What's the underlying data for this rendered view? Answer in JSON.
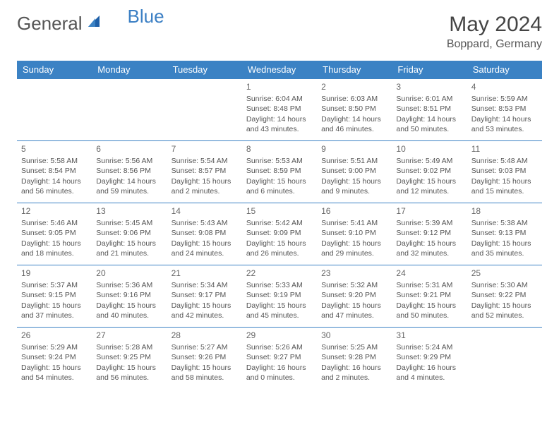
{
  "logo": {
    "general": "General",
    "blue": "Blue"
  },
  "title": "May 2024",
  "location": "Boppard, Germany",
  "colors": {
    "header_bg": "#3b82c4",
    "header_text": "#ffffff",
    "border": "#3b82c4",
    "text": "#555555",
    "logo_gray": "#555555",
    "logo_blue": "#3b7fc4"
  },
  "dayHeaders": [
    "Sunday",
    "Monday",
    "Tuesday",
    "Wednesday",
    "Thursday",
    "Friday",
    "Saturday"
  ],
  "weeks": [
    [
      null,
      null,
      null,
      {
        "n": "1",
        "sr": "6:04 AM",
        "ss": "8:48 PM",
        "dl": "14 hours and 43 minutes."
      },
      {
        "n": "2",
        "sr": "6:03 AM",
        "ss": "8:50 PM",
        "dl": "14 hours and 46 minutes."
      },
      {
        "n": "3",
        "sr": "6:01 AM",
        "ss": "8:51 PM",
        "dl": "14 hours and 50 minutes."
      },
      {
        "n": "4",
        "sr": "5:59 AM",
        "ss": "8:53 PM",
        "dl": "14 hours and 53 minutes."
      }
    ],
    [
      {
        "n": "5",
        "sr": "5:58 AM",
        "ss": "8:54 PM",
        "dl": "14 hours and 56 minutes."
      },
      {
        "n": "6",
        "sr": "5:56 AM",
        "ss": "8:56 PM",
        "dl": "14 hours and 59 minutes."
      },
      {
        "n": "7",
        "sr": "5:54 AM",
        "ss": "8:57 PM",
        "dl": "15 hours and 2 minutes."
      },
      {
        "n": "8",
        "sr": "5:53 AM",
        "ss": "8:59 PM",
        "dl": "15 hours and 6 minutes."
      },
      {
        "n": "9",
        "sr": "5:51 AM",
        "ss": "9:00 PM",
        "dl": "15 hours and 9 minutes."
      },
      {
        "n": "10",
        "sr": "5:49 AM",
        "ss": "9:02 PM",
        "dl": "15 hours and 12 minutes."
      },
      {
        "n": "11",
        "sr": "5:48 AM",
        "ss": "9:03 PM",
        "dl": "15 hours and 15 minutes."
      }
    ],
    [
      {
        "n": "12",
        "sr": "5:46 AM",
        "ss": "9:05 PM",
        "dl": "15 hours and 18 minutes."
      },
      {
        "n": "13",
        "sr": "5:45 AM",
        "ss": "9:06 PM",
        "dl": "15 hours and 21 minutes."
      },
      {
        "n": "14",
        "sr": "5:43 AM",
        "ss": "9:08 PM",
        "dl": "15 hours and 24 minutes."
      },
      {
        "n": "15",
        "sr": "5:42 AM",
        "ss": "9:09 PM",
        "dl": "15 hours and 26 minutes."
      },
      {
        "n": "16",
        "sr": "5:41 AM",
        "ss": "9:10 PM",
        "dl": "15 hours and 29 minutes."
      },
      {
        "n": "17",
        "sr": "5:39 AM",
        "ss": "9:12 PM",
        "dl": "15 hours and 32 minutes."
      },
      {
        "n": "18",
        "sr": "5:38 AM",
        "ss": "9:13 PM",
        "dl": "15 hours and 35 minutes."
      }
    ],
    [
      {
        "n": "19",
        "sr": "5:37 AM",
        "ss": "9:15 PM",
        "dl": "15 hours and 37 minutes."
      },
      {
        "n": "20",
        "sr": "5:36 AM",
        "ss": "9:16 PM",
        "dl": "15 hours and 40 minutes."
      },
      {
        "n": "21",
        "sr": "5:34 AM",
        "ss": "9:17 PM",
        "dl": "15 hours and 42 minutes."
      },
      {
        "n": "22",
        "sr": "5:33 AM",
        "ss": "9:19 PM",
        "dl": "15 hours and 45 minutes."
      },
      {
        "n": "23",
        "sr": "5:32 AM",
        "ss": "9:20 PM",
        "dl": "15 hours and 47 minutes."
      },
      {
        "n": "24",
        "sr": "5:31 AM",
        "ss": "9:21 PM",
        "dl": "15 hours and 50 minutes."
      },
      {
        "n": "25",
        "sr": "5:30 AM",
        "ss": "9:22 PM",
        "dl": "15 hours and 52 minutes."
      }
    ],
    [
      {
        "n": "26",
        "sr": "5:29 AM",
        "ss": "9:24 PM",
        "dl": "15 hours and 54 minutes."
      },
      {
        "n": "27",
        "sr": "5:28 AM",
        "ss": "9:25 PM",
        "dl": "15 hours and 56 minutes."
      },
      {
        "n": "28",
        "sr": "5:27 AM",
        "ss": "9:26 PM",
        "dl": "15 hours and 58 minutes."
      },
      {
        "n": "29",
        "sr": "5:26 AM",
        "ss": "9:27 PM",
        "dl": "16 hours and 0 minutes."
      },
      {
        "n": "30",
        "sr": "5:25 AM",
        "ss": "9:28 PM",
        "dl": "16 hours and 2 minutes."
      },
      {
        "n": "31",
        "sr": "5:24 AM",
        "ss": "9:29 PM",
        "dl": "16 hours and 4 minutes."
      },
      null
    ]
  ],
  "labels": {
    "sunrise": "Sunrise:",
    "sunset": "Sunset:",
    "daylight": "Daylight:"
  }
}
